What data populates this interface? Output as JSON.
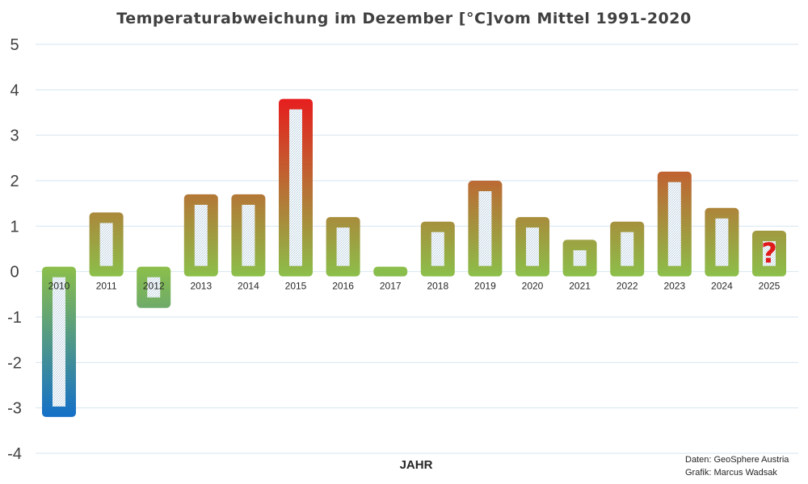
{
  "chart_data": {
    "type": "bar",
    "title": "Temperaturabweichung im Dezember [°C]vom Mittel 1991-2020",
    "xlabel": "JAHR",
    "ylabel": "",
    "ylim": [
      -4,
      5
    ],
    "yticks": [
      "5",
      "4",
      "3",
      "2",
      "1",
      "0",
      "-1",
      "-2",
      "-3",
      "-4"
    ],
    "grid": true,
    "categories": [
      "2010",
      "2011",
      "2012",
      "2013",
      "2014",
      "2015",
      "2016",
      "2017",
      "2018",
      "2019",
      "2020",
      "2021",
      "2022",
      "2023",
      "2024",
      "2025"
    ],
    "values": [
      -3.2,
      1.3,
      -0.8,
      1.7,
      1.7,
      3.8,
      1.2,
      -0.1,
      1.1,
      2.0,
      1.2,
      0.7,
      1.1,
      2.2,
      1.4,
      0.9
    ],
    "annotations": [
      {
        "category": "2025",
        "text": "?"
      }
    ],
    "credits": [
      "Daten: GeoSphere Austria",
      "Grafik: Marcus Wadsak"
    ],
    "colors": {
      "warm": "#e61e1e",
      "neutral": "#8cbf4a",
      "cold": "#1470c8",
      "grid": "#d6e6f0"
    }
  }
}
